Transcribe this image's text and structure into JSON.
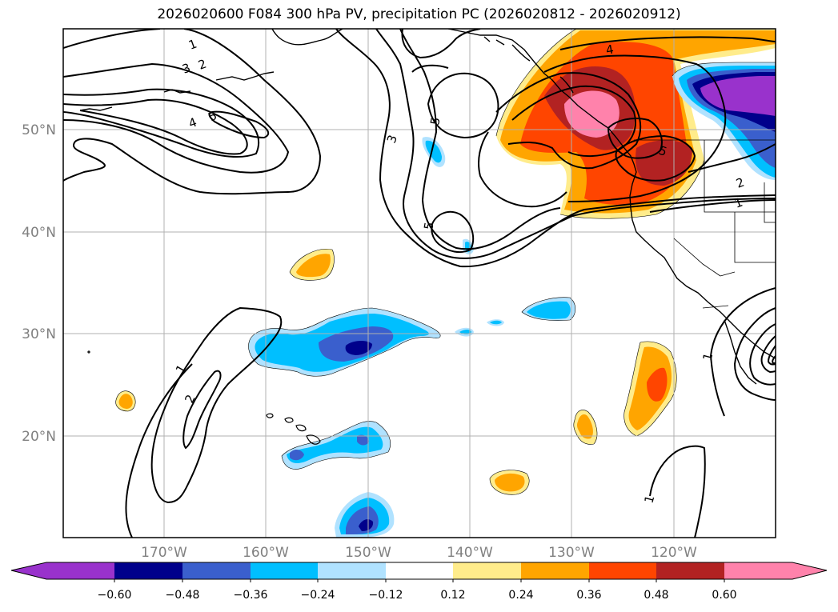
{
  "title": "2026020600 F084 300 hPa PV, precipitation PC (2026020812 - 2026020912)",
  "map": {
    "lat_labels": [
      "50°N",
      "40°N",
      "30°N",
      "20°N"
    ],
    "lon_labels": [
      "170°W",
      "160°W",
      "150°W",
      "140°W",
      "130°W",
      "120°W"
    ],
    "contour_labels": [
      "1",
      "2",
      "3",
      "4",
      "5",
      "5",
      "3",
      "5",
      "4",
      "5",
      "2",
      "1",
      "1",
      "1",
      "2",
      "1"
    ]
  },
  "colorbar": {
    "ticks": [
      "−0.60",
      "−0.48",
      "−0.36",
      "−0.24",
      "−0.12",
      "0.12",
      "0.24",
      "0.36",
      "0.48",
      "0.60"
    ],
    "colors": [
      "#9932cc",
      "#00008b",
      "#3a5fcd",
      "#00bfff",
      "#b0e2ff",
      "#ffffff",
      "#ffec8b",
      "#ffa500",
      "#ff4500",
      "#b22222",
      "#ff82ab"
    ]
  }
}
